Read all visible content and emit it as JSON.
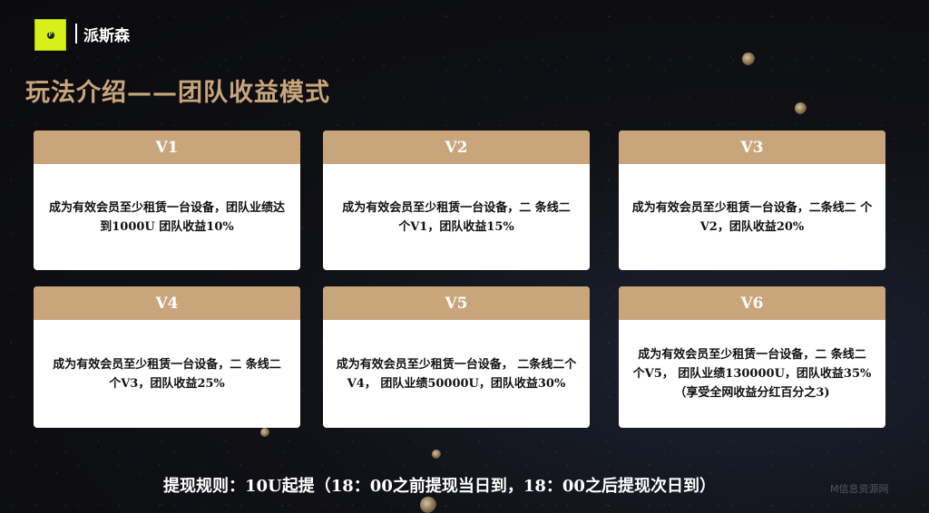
{
  "brand": {
    "name": "派斯森",
    "logo_letter": "P"
  },
  "title": "玩法介绍——团队收益模式",
  "levels": [
    {
      "label": "V1",
      "desc": "成为有效会员至少租赁一台设备，团队业绩达到1000U  团队收益10%"
    },
    {
      "label": "V2",
      "desc": "成为有效会员至少租赁一台设备，二 条线二 个V1，团队收益15%"
    },
    {
      "label": "V3",
      "desc": "成为有效会员至少租赁一台设备，二条线二 个V2，团队收益20%"
    },
    {
      "label": "V4",
      "desc": "成为有效会员至少租赁一台设备，二 条线二 个V3，团队收益25%"
    },
    {
      "label": "V5",
      "desc": "成为有效会员至少租赁一台设备， 二条线二个V4， 团队业绩50000U，团队收益30%"
    },
    {
      "label": "V6",
      "desc": "成为有效会员至少租赁一台设备，二 条线二 个V5， 团队业绩130000U，团队收益35%（享受全网收益分红百分之3)"
    }
  ],
  "footer": "提现规则：10U起提（18：00之前提现当日到，18：00之后提现次日到）",
  "watermark": "M信息资源网",
  "colors": {
    "accent": "#c9a57c",
    "logo": "#d8f01a"
  }
}
